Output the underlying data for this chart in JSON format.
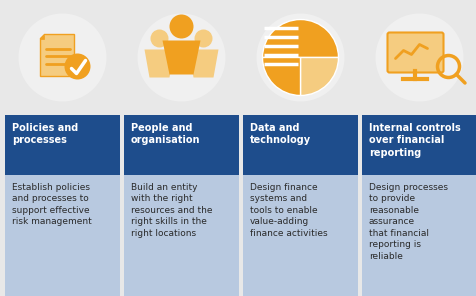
{
  "background_color": "#e8e8e8",
  "column_bg_color": "#b8c9e0",
  "header_bg_color": "#1e4d8c",
  "header_text_color": "#ffffff",
  "body_text_color": "#2a2a2a",
  "icon_circle_color": "#f0f0f0",
  "icon_color": "#f0a020",
  "icon_color_light": "#f5cc80",
  "columns": [
    {
      "title": "Policies and\nprocesses",
      "body": "Establish policies\nand processes to\nsupport effective\nrisk management"
    },
    {
      "title": "People and\norganisation",
      "body": "Build an entity\nwith the right\nresources and the\nright skills in the\nright locations"
    },
    {
      "title": "Data and\ntechnology",
      "body": "Design finance\nsystems and\ntools to enable\nvalue-adding\nfinance activities"
    },
    {
      "title": "Internal controls\nover financial\nreporting",
      "body": "Design processes\nto provide\nreasonable\nassurance\nthat financial\nreporting is\nreliable"
    }
  ],
  "fig_width": 4.77,
  "fig_height": 2.96,
  "dpi": 100
}
